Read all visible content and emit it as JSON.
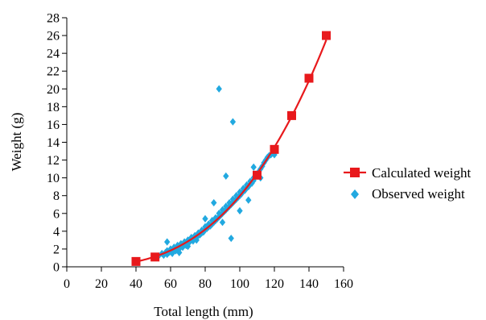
{
  "chart_data": {
    "type": "scatter",
    "title": "",
    "xlabel": "Total length (mm)",
    "ylabel": "Weight (g)",
    "xlim": [
      0,
      160
    ],
    "ylim": [
      0,
      28
    ],
    "xticks": [
      0,
      20,
      40,
      60,
      80,
      100,
      120,
      140,
      160
    ],
    "yticks": [
      0,
      2,
      4,
      6,
      8,
      10,
      12,
      14,
      16,
      18,
      20,
      22,
      24,
      26,
      28
    ],
    "grid": false,
    "legend_position": "right",
    "series": [
      {
        "name": "Calculated weight",
        "kind": "line-with-markers",
        "color": "#e8191c",
        "marker": "square",
        "x": [
          40,
          51,
          110,
          120,
          130,
          140,
          150
        ],
        "y": [
          0.6,
          1.1,
          10.3,
          13.2,
          17.0,
          21.2,
          26.0
        ]
      },
      {
        "name": "Observed weight",
        "kind": "scatter",
        "color": "#22a9e0",
        "marker": "diamond",
        "x": [
          53,
          55,
          56,
          57,
          58,
          58,
          59,
          60,
          60,
          61,
          62,
          62,
          63,
          64,
          64,
          65,
          66,
          66,
          67,
          68,
          68,
          69,
          70,
          70,
          71,
          72,
          72,
          73,
          74,
          74,
          75,
          76,
          76,
          77,
          78,
          78,
          79,
          80,
          80,
          81,
          82,
          82,
          83,
          84,
          84,
          85,
          86,
          86,
          87,
          88,
          88,
          89,
          90,
          90,
          91,
          92,
          92,
          93,
          94,
          94,
          95,
          96,
          96,
          97,
          98,
          98,
          99,
          100,
          100,
          101,
          102,
          102,
          103,
          104,
          104,
          105,
          106,
          106,
          107,
          108,
          108,
          110,
          111,
          112,
          113,
          114,
          115,
          116,
          117,
          118,
          119,
          120,
          58,
          80,
          85,
          92,
          88,
          95,
          96,
          105,
          108,
          112,
          120,
          100,
          90,
          75,
          70,
          65
        ],
        "y": [
          1.2,
          1.5,
          1.3,
          1.6,
          1.4,
          1.8,
          1.6,
          1.7,
          2.0,
          1.5,
          1.9,
          2.2,
          1.8,
          2.1,
          2.4,
          2.0,
          2.3,
          2.6,
          2.2,
          2.5,
          2.8,
          2.4,
          2.6,
          3.0,
          2.8,
          3.0,
          3.3,
          2.9,
          3.2,
          3.5,
          3.3,
          3.5,
          3.8,
          3.6,
          3.8,
          4.1,
          3.9,
          4.2,
          4.5,
          4.3,
          4.5,
          4.8,
          4.6,
          4.8,
          5.2,
          5.0,
          5.2,
          5.5,
          5.4,
          5.6,
          6.0,
          5.8,
          6.0,
          6.4,
          6.2,
          6.4,
          6.8,
          6.6,
          6.8,
          7.2,
          7.0,
          7.2,
          7.6,
          7.4,
          7.6,
          8.0,
          7.8,
          8.0,
          8.4,
          8.2,
          8.5,
          8.8,
          8.6,
          8.9,
          9.2,
          9.0,
          9.3,
          9.6,
          9.4,
          9.7,
          10.0,
          10.4,
          10.7,
          11.0,
          11.3,
          11.7,
          12.0,
          12.3,
          12.5,
          12.6,
          12.8,
          13.0,
          2.8,
          5.4,
          7.2,
          10.2,
          20.0,
          3.2,
          16.3,
          7.5,
          11.2,
          10.0,
          12.6,
          6.3,
          5.0,
          3.0,
          2.3,
          1.6
        ]
      }
    ]
  }
}
